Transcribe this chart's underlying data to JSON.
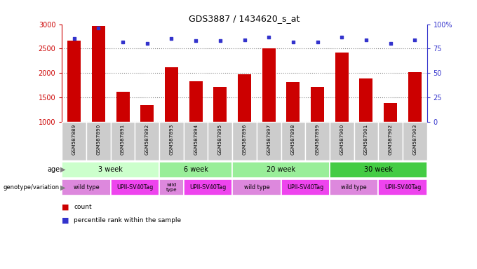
{
  "title": "GDS3887 / 1434620_s_at",
  "samples": [
    "GSM587889",
    "GSM587890",
    "GSM587891",
    "GSM587892",
    "GSM587893",
    "GSM587894",
    "GSM587895",
    "GSM587896",
    "GSM587897",
    "GSM587898",
    "GSM587899",
    "GSM587900",
    "GSM587901",
    "GSM587902",
    "GSM587903"
  ],
  "counts": [
    2660,
    2970,
    1620,
    1340,
    2110,
    1830,
    1710,
    1980,
    2500,
    1810,
    1720,
    2420,
    1880,
    1390,
    2010
  ],
  "percentiles": [
    85,
    96,
    82,
    80,
    85,
    83,
    83,
    84,
    87,
    82,
    82,
    87,
    84,
    80,
    84
  ],
  "ylim_left": [
    1000,
    3000
  ],
  "ylim_right": [
    0,
    100
  ],
  "yticks_left": [
    1000,
    1500,
    2000,
    2500,
    3000
  ],
  "yticks_right": [
    0,
    25,
    50,
    75,
    100
  ],
  "bar_color": "#cc0000",
  "dot_color": "#3333cc",
  "age_groups": [
    {
      "label": "3 week",
      "start": 0,
      "end": 4,
      "color": "#ccffcc"
    },
    {
      "label": "6 week",
      "start": 4,
      "end": 7,
      "color": "#99ee99"
    },
    {
      "label": "20 week",
      "start": 7,
      "end": 11,
      "color": "#99ee99"
    },
    {
      "label": "30 week",
      "start": 11,
      "end": 15,
      "color": "#44cc44"
    }
  ],
  "genotype_groups": [
    {
      "label": "wild type",
      "start": 0,
      "end": 2,
      "color": "#dd88dd",
      "multiline": false
    },
    {
      "label": "UPII-SV40Tag",
      "start": 2,
      "end": 4,
      "color": "#ee44ee",
      "multiline": false
    },
    {
      "label": "wild\ntype",
      "start": 4,
      "end": 5,
      "color": "#dd88dd",
      "multiline": true
    },
    {
      "label": "UPII-SV40Tag",
      "start": 5,
      "end": 7,
      "color": "#ee44ee",
      "multiline": false
    },
    {
      "label": "wild type",
      "start": 7,
      "end": 9,
      "color": "#dd88dd",
      "multiline": false
    },
    {
      "label": "UPII-SV40Tag",
      "start": 9,
      "end": 11,
      "color": "#ee44ee",
      "multiline": false
    },
    {
      "label": "wild type",
      "start": 11,
      "end": 13,
      "color": "#dd88dd",
      "multiline": false
    },
    {
      "label": "UPII-SV40Tag",
      "start": 13,
      "end": 15,
      "color": "#ee44ee",
      "multiline": false
    }
  ],
  "left_ylabel_color": "#cc0000",
  "right_ylabel_color": "#3333cc",
  "sample_box_color": "#cccccc",
  "background_color": "#ffffff",
  "legend_count_color": "#cc0000",
  "legend_dot_color": "#3333cc"
}
